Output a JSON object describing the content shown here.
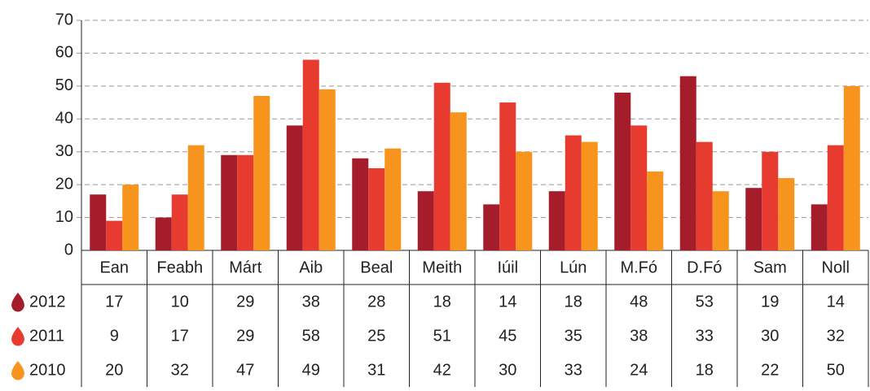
{
  "chart_data": {
    "type": "bar",
    "categories": [
      "Ean",
      "Feabh",
      "Márt",
      "Aib",
      "Beal",
      "Meith",
      "Iúil",
      "Lún",
      "M.Fó",
      "D.Fó",
      "Sam",
      "Noll"
    ],
    "series": [
      {
        "name": "2012",
        "color": "#a51c2a",
        "values": [
          17,
          10,
          29,
          38,
          28,
          18,
          14,
          18,
          48,
          53,
          19,
          14
        ]
      },
      {
        "name": "2011",
        "color": "#e63b2e",
        "values": [
          9,
          17,
          29,
          58,
          25,
          51,
          45,
          35,
          38,
          33,
          30,
          32
        ]
      },
      {
        "name": "2010",
        "color": "#f7941d",
        "values": [
          20,
          32,
          47,
          49,
          31,
          42,
          30,
          33,
          24,
          18,
          22,
          50
        ]
      }
    ],
    "ylim": [
      0,
      70
    ],
    "yticks": [
      0,
      10,
      20,
      30,
      40,
      50,
      60,
      70
    ],
    "grid": true
  }
}
